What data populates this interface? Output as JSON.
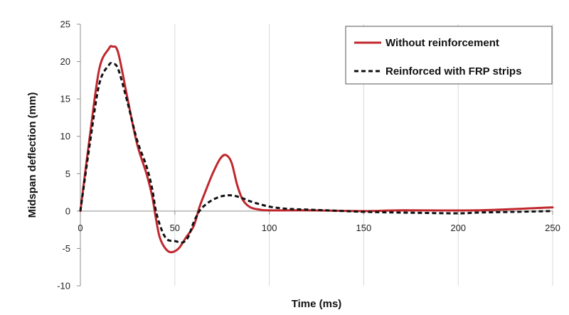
{
  "chart_data": {
    "type": "line",
    "title": "",
    "xlabel": "Time (ms)",
    "ylabel": "Midspan deflection (mm)",
    "xlim": [
      0,
      250
    ],
    "ylim": [
      -10,
      25
    ],
    "x_ticks": [
      0,
      50,
      100,
      150,
      200,
      250
    ],
    "y_ticks": [
      -10,
      -5,
      0,
      5,
      10,
      15,
      20,
      25
    ],
    "grid": {
      "vertical": true,
      "horizontal": false
    },
    "legend_position": "top-right",
    "series": [
      {
        "name": "Without reinforcement",
        "color": "#c0282d",
        "style": "solid",
        "x": [
          0,
          5,
          10,
          15,
          17,
          20,
          25,
          30,
          35,
          38,
          40,
          42,
          45,
          48,
          52,
          56,
          60,
          63,
          66,
          70,
          74,
          77,
          80,
          83,
          86,
          90,
          95,
          100,
          120,
          150,
          170,
          210,
          250
        ],
        "y": [
          0,
          10,
          19,
          21.7,
          22,
          21.2,
          15,
          9,
          5,
          2,
          -1,
          -3.5,
          -5,
          -5.5,
          -5,
          -3.5,
          -2,
          0.5,
          2.5,
          5,
          7,
          7.5,
          6.5,
          3.5,
          1.5,
          0.5,
          0.2,
          0.1,
          0.1,
          0,
          0.1,
          0.1,
          0.5
        ]
      },
      {
        "name": "Reinforced with FRP strips",
        "color": "#111111",
        "style": "dashed",
        "x": [
          0,
          5,
          10,
          15,
          17,
          20,
          25,
          30,
          35,
          38,
          40,
          43,
          46,
          50,
          54,
          57,
          60,
          63,
          66,
          70,
          75,
          80,
          85,
          90,
          100,
          110,
          120,
          130,
          140,
          150,
          170,
          200,
          210,
          230,
          250
        ],
        "y": [
          0,
          9,
          17,
          19.5,
          19.7,
          19,
          14.5,
          9.5,
          6,
          3,
          0,
          -2.5,
          -3.8,
          -4,
          -4.2,
          -3.5,
          -1.5,
          0,
          0.8,
          1.5,
          2,
          2.1,
          1.8,
          1.3,
          0.6,
          0.3,
          0.2,
          0.1,
          0,
          -0.1,
          -0.2,
          -0.3,
          -0.2,
          -0.1,
          0
        ]
      }
    ]
  }
}
